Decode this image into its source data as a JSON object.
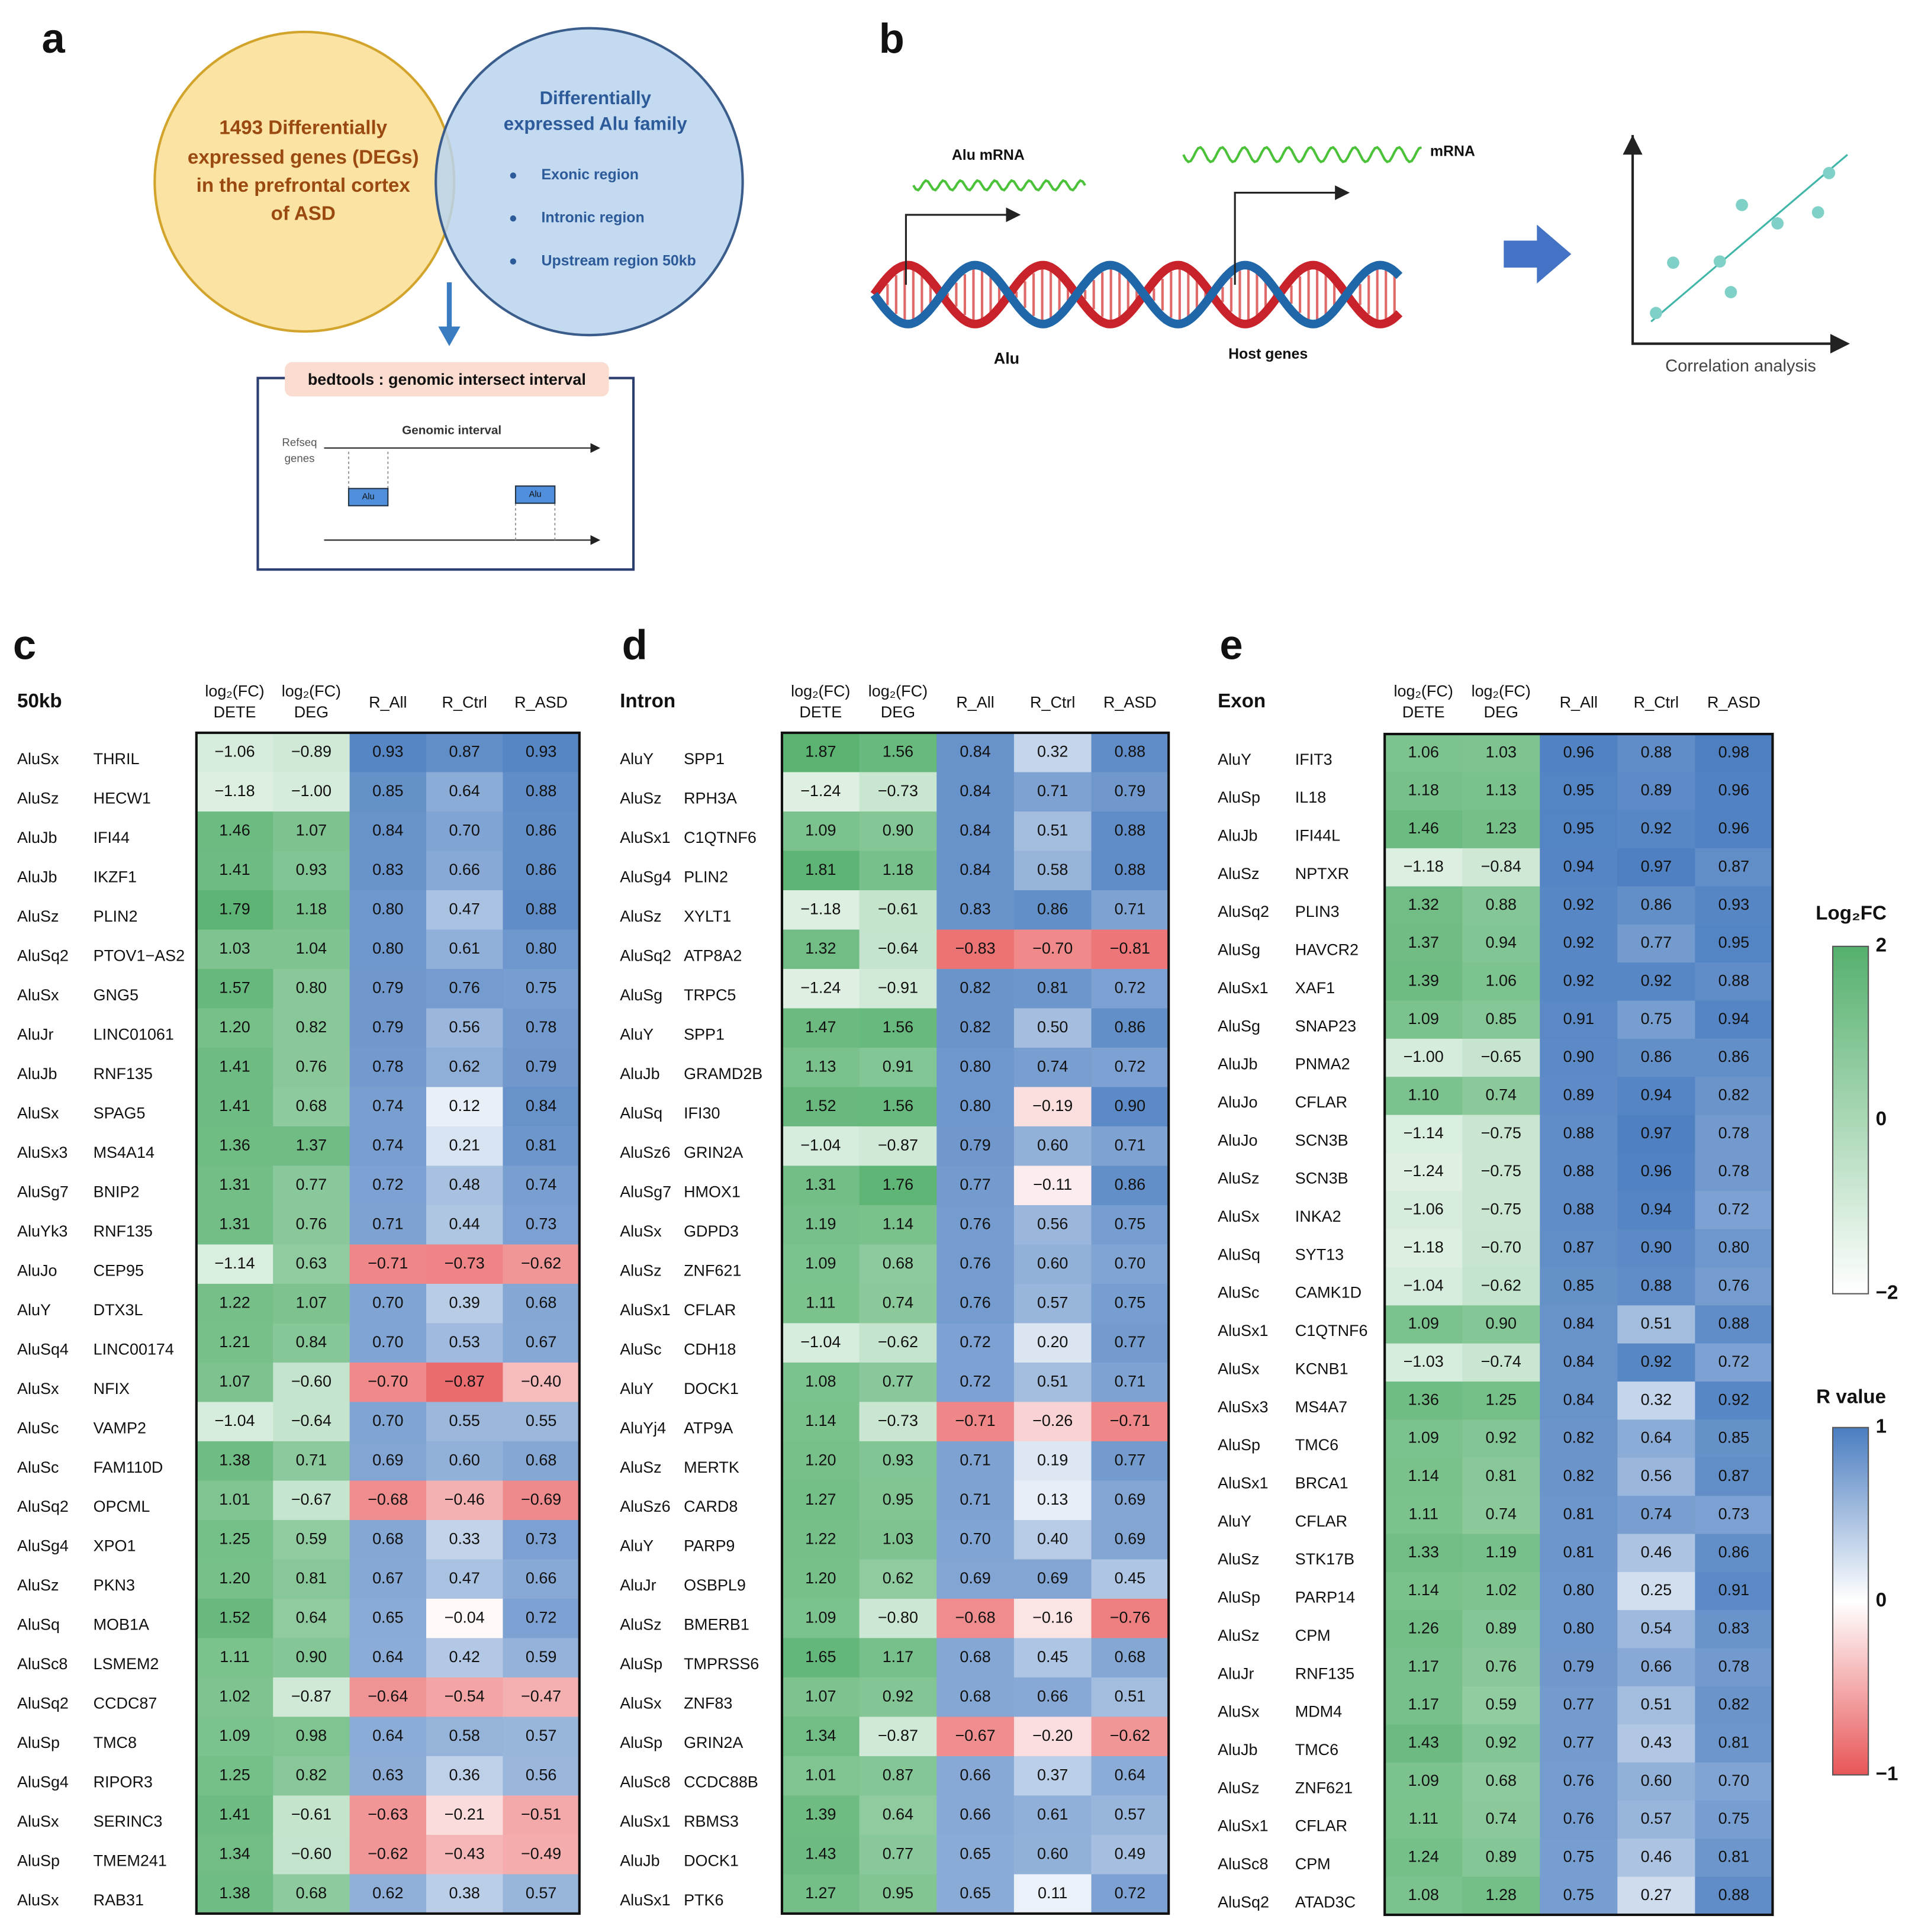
{
  "panel_a": {
    "label": "a",
    "deg_circle": [
      "1493 Differentially",
      "expressed genes (DEGs)",
      "in the prefrontal cortex",
      "of ASD"
    ],
    "alu_circle": {
      "title": [
        "Differentially",
        "expressed Alu family"
      ],
      "items": [
        "Exonic region",
        "Intronic region",
        "Upstream region 50kb"
      ]
    },
    "tool": "bedtools : genomic intersect interval",
    "diagram": {
      "refseq": [
        "Refseq",
        "genes"
      ],
      "interval": "Genomic interval",
      "alu": [
        "Alu",
        "Alu"
      ]
    }
  },
  "panel_b": {
    "label": "b",
    "alu_mrna": "Alu mRNA",
    "mrna": "mRNA",
    "alu": "Alu",
    "host": "Host genes",
    "correlation": "Correlation analysis"
  },
  "heatmaps": [
    {
      "label": "c",
      "region": "50kb",
      "columns": [
        {
          "top": "log₂(FC)",
          "bottom": "DETE"
        },
        {
          "top": "log₂(FC)",
          "bottom": "DEG"
        },
        {
          "top": "R_All"
        },
        {
          "top": "R_Ctrl"
        },
        {
          "top": "R_ASD"
        }
      ],
      "rows": [
        [
          "AluSx",
          "THRIL",
          "−1.06",
          "−0.89",
          "0.93",
          "0.87",
          "0.93"
        ],
        [
          "AluSz",
          "HECW1",
          "−1.18",
          "−1.00",
          "0.85",
          "0.64",
          "0.88"
        ],
        [
          "AluJb",
          "IFI44",
          "1.46",
          "1.07",
          "0.84",
          "0.70",
          "0.86"
        ],
        [
          "AluJb",
          "IKZF1",
          "1.41",
          "0.93",
          "0.83",
          "0.66",
          "0.86"
        ],
        [
          "AluSz",
          "PLIN2",
          "1.79",
          "1.18",
          "0.80",
          "0.47",
          "0.88"
        ],
        [
          "AluSq2",
          "PTOV1−AS2",
          "1.03",
          "1.04",
          "0.80",
          "0.61",
          "0.80"
        ],
        [
          "AluSx",
          "GNG5",
          "1.57",
          "0.80",
          "0.79",
          "0.76",
          "0.75"
        ],
        [
          "AluJr",
          "LINC01061",
          "1.20",
          "0.82",
          "0.79",
          "0.56",
          "0.78"
        ],
        [
          "AluJb",
          "RNF135",
          "1.41",
          "0.76",
          "0.78",
          "0.62",
          "0.79"
        ],
        [
          "AluSx",
          "SPAG5",
          "1.41",
          "0.68",
          "0.74",
          "0.12",
          "0.84"
        ],
        [
          "AluSx3",
          "MS4A14",
          "1.36",
          "1.37",
          "0.74",
          "0.21",
          "0.81"
        ],
        [
          "AluSg7",
          "BNIP2",
          "1.31",
          "0.77",
          "0.72",
          "0.48",
          "0.74"
        ],
        [
          "AluYk3",
          "RNF135",
          "1.31",
          "0.76",
          "0.71",
          "0.44",
          "0.73"
        ],
        [
          "AluJo",
          "CEP95",
          "−1.14",
          "0.63",
          "−0.71",
          "−0.73",
          "−0.62"
        ],
        [
          "AluY",
          "DTX3L",
          "1.22",
          "1.07",
          "0.70",
          "0.39",
          "0.68"
        ],
        [
          "AluSq4",
          "LINC00174",
          "1.21",
          "0.84",
          "0.70",
          "0.53",
          "0.67"
        ],
        [
          "AluSx",
          "NFIX",
          "1.07",
          "−0.60",
          "−0.70",
          "−0.87",
          "−0.40"
        ],
        [
          "AluSc",
          "VAMP2",
          "−1.04",
          "−0.64",
          "0.70",
          "0.55",
          "0.55"
        ],
        [
          "AluSc",
          "FAM110D",
          "1.38",
          "0.71",
          "0.69",
          "0.60",
          "0.68"
        ],
        [
          "AluSq2",
          "OPCML",
          "1.01",
          "−0.67",
          "−0.68",
          "−0.46",
          "−0.69"
        ],
        [
          "AluSg4",
          "XPO1",
          "1.25",
          "0.59",
          "0.68",
          "0.33",
          "0.73"
        ],
        [
          "AluSz",
          "PKN3",
          "1.20",
          "0.81",
          "0.67",
          "0.47",
          "0.66"
        ],
        [
          "AluSq",
          "MOB1A",
          "1.52",
          "0.64",
          "0.65",
          "−0.04",
          "0.72"
        ],
        [
          "AluSc8",
          "LSMEM2",
          "1.11",
          "0.90",
          "0.64",
          "0.42",
          "0.59"
        ],
        [
          "AluSq2",
          "CCDC87",
          "1.02",
          "−0.87",
          "−0.64",
          "−0.54",
          "−0.47"
        ],
        [
          "AluSp",
          "TMC8",
          "1.09",
          "0.98",
          "0.64",
          "0.58",
          "0.57"
        ],
        [
          "AluSg4",
          "RIPOR3",
          "1.25",
          "0.82",
          "0.63",
          "0.36",
          "0.56"
        ],
        [
          "AluSx",
          "SERINC3",
          "1.41",
          "−0.61",
          "−0.63",
          "−0.21",
          "−0.51"
        ],
        [
          "AluSp",
          "TMEM241",
          "1.34",
          "−0.60",
          "−0.62",
          "−0.43",
          "−0.49"
        ],
        [
          "AluSx",
          "RAB31",
          "1.38",
          "0.68",
          "0.62",
          "0.38",
          "0.57"
        ]
      ]
    },
    {
      "label": "d",
      "region": "Intron",
      "columns": [
        {
          "top": "log₂(FC)",
          "bottom": "DETE"
        },
        {
          "top": "log₂(FC)",
          "bottom": "DEG"
        },
        {
          "top": "R_All"
        },
        {
          "top": "R_Ctrl"
        },
        {
          "top": "R_ASD"
        }
      ],
      "rows": [
        [
          "AluY",
          "SPP1",
          "1.87",
          "1.56",
          "0.84",
          "0.32",
          "0.88"
        ],
        [
          "AluSz",
          "RPH3A",
          "−1.24",
          "−0.73",
          "0.84",
          "0.71",
          "0.79"
        ],
        [
          "AluSx1",
          "C1QTNF6",
          "1.09",
          "0.90",
          "0.84",
          "0.51",
          "0.88"
        ],
        [
          "AluSg4",
          "PLIN2",
          "1.81",
          "1.18",
          "0.84",
          "0.58",
          "0.88"
        ],
        [
          "AluSz",
          "XYLT1",
          "−1.18",
          "−0.61",
          "0.83",
          "0.86",
          "0.71"
        ],
        [
          "AluSq2",
          "ATP8A2",
          "1.32",
          "−0.64",
          "−0.83",
          "−0.70",
          "−0.81"
        ],
        [
          "AluSg",
          "TRPC5",
          "−1.24",
          "−0.91",
          "0.82",
          "0.81",
          "0.72"
        ],
        [
          "AluY",
          "SPP1",
          "1.47",
          "1.56",
          "0.82",
          "0.50",
          "0.86"
        ],
        [
          "AluJb",
          "GRAMD2B",
          "1.13",
          "0.91",
          "0.80",
          "0.74",
          "0.72"
        ],
        [
          "AluSq",
          "IFI30",
          "1.52",
          "1.56",
          "0.80",
          "−0.19",
          "0.90"
        ],
        [
          "AluSz6",
          "GRIN2A",
          "−1.04",
          "−0.87",
          "0.79",
          "0.60",
          "0.71"
        ],
        [
          "AluSg7",
          "HMOX1",
          "1.31",
          "1.76",
          "0.77",
          "−0.11",
          "0.86"
        ],
        [
          "AluSx",
          "GDPD3",
          "1.19",
          "1.14",
          "0.76",
          "0.56",
          "0.75"
        ],
        [
          "AluSz",
          "ZNF621",
          "1.09",
          "0.68",
          "0.76",
          "0.60",
          "0.70"
        ],
        [
          "AluSx1",
          "CFLAR",
          "1.11",
          "0.74",
          "0.76",
          "0.57",
          "0.75"
        ],
        [
          "AluSc",
          "CDH18",
          "−1.04",
          "−0.62",
          "0.72",
          "0.20",
          "0.77"
        ],
        [
          "AluY",
          "DOCK1",
          "1.08",
          "0.77",
          "0.72",
          "0.51",
          "0.71"
        ],
        [
          "AluYj4",
          "ATP9A",
          "1.14",
          "−0.73",
          "−0.71",
          "−0.26",
          "−0.71"
        ],
        [
          "AluSz",
          "MERTK",
          "1.20",
          "0.93",
          "0.71",
          "0.19",
          "0.77"
        ],
        [
          "AluSz6",
          "CARD8",
          "1.27",
          "0.95",
          "0.71",
          "0.13",
          "0.69"
        ],
        [
          "AluY",
          "PARP9",
          "1.22",
          "1.03",
          "0.70",
          "0.40",
          "0.69"
        ],
        [
          "AluJr",
          "OSBPL9",
          "1.20",
          "0.62",
          "0.69",
          "0.69",
          "0.45"
        ],
        [
          "AluSz",
          "BMERB1",
          "1.09",
          "−0.80",
          "−0.68",
          "−0.16",
          "−0.76"
        ],
        [
          "AluSp",
          "TMPRSS6",
          "1.65",
          "1.17",
          "0.68",
          "0.45",
          "0.68"
        ],
        [
          "AluSx",
          "ZNF83",
          "1.07",
          "0.92",
          "0.68",
          "0.66",
          "0.51"
        ],
        [
          "AluSp",
          "GRIN2A",
          "1.34",
          "−0.87",
          "−0.67",
          "−0.20",
          "−0.62"
        ],
        [
          "AluSc8",
          "CCDC88B",
          "1.01",
          "0.87",
          "0.66",
          "0.37",
          "0.64"
        ],
        [
          "AluSx1",
          "RBMS3",
          "1.39",
          "0.64",
          "0.66",
          "0.61",
          "0.57"
        ],
        [
          "AluJb",
          "DOCK1",
          "1.43",
          "0.77",
          "0.65",
          "0.60",
          "0.49"
        ],
        [
          "AluSx1",
          "PTK6",
          "1.27",
          "0.95",
          "0.65",
          "0.11",
          "0.72"
        ]
      ]
    },
    {
      "label": "e",
      "region": "Exon",
      "columns": [
        {
          "top": "log₂(FC)",
          "bottom": "DETE"
        },
        {
          "top": "log₂(FC)",
          "bottom": "DEG"
        },
        {
          "top": "R_All"
        },
        {
          "top": "R_Ctrl"
        },
        {
          "top": "R_ASD"
        }
      ],
      "rows": [
        [
          "AluY",
          "IFIT3",
          "1.06",
          "1.03",
          "0.96",
          "0.88",
          "0.98"
        ],
        [
          "AluSp",
          "IL18",
          "1.18",
          "1.13",
          "0.95",
          "0.89",
          "0.96"
        ],
        [
          "AluJb",
          "IFI44L",
          "1.46",
          "1.23",
          "0.95",
          "0.92",
          "0.96"
        ],
        [
          "AluSz",
          "NPTXR",
          "−1.18",
          "−0.84",
          "0.94",
          "0.97",
          "0.87"
        ],
        [
          "AluSq2",
          "PLIN3",
          "1.32",
          "0.88",
          "0.92",
          "0.86",
          "0.93"
        ],
        [
          "AluSg",
          "HAVCR2",
          "1.37",
          "0.94",
          "0.92",
          "0.77",
          "0.95"
        ],
        [
          "AluSx1",
          "XAF1",
          "1.39",
          "1.06",
          "0.92",
          "0.92",
          "0.88"
        ],
        [
          "AluSg",
          "SNAP23",
          "1.09",
          "0.85",
          "0.91",
          "0.75",
          "0.94"
        ],
        [
          "AluJb",
          "PNMA2",
          "−1.00",
          "−0.65",
          "0.90",
          "0.86",
          "0.86"
        ],
        [
          "AluJo",
          "CFLAR",
          "1.10",
          "0.74",
          "0.89",
          "0.94",
          "0.82"
        ],
        [
          "AluJo",
          "SCN3B",
          "−1.14",
          "−0.75",
          "0.88",
          "0.97",
          "0.78"
        ],
        [
          "AluSz",
          "SCN3B",
          "−1.24",
          "−0.75",
          "0.88",
          "0.96",
          "0.78"
        ],
        [
          "AluSx",
          "INKA2",
          "−1.06",
          "−0.75",
          "0.88",
          "0.94",
          "0.72"
        ],
        [
          "AluSq",
          "SYT13",
          "−1.18",
          "−0.70",
          "0.87",
          "0.90",
          "0.80"
        ],
        [
          "AluSc",
          "CAMK1D",
          "−1.04",
          "−0.62",
          "0.85",
          "0.88",
          "0.76"
        ],
        [
          "AluSx1",
          "C1QTNF6",
          "1.09",
          "0.90",
          "0.84",
          "0.51",
          "0.88"
        ],
        [
          "AluSx",
          "KCNB1",
          "−1.03",
          "−0.74",
          "0.84",
          "0.92",
          "0.72"
        ],
        [
          "AluSx3",
          "MS4A7",
          "1.36",
          "1.25",
          "0.84",
          "0.32",
          "0.92"
        ],
        [
          "AluSp",
          "TMC6",
          "1.09",
          "0.92",
          "0.82",
          "0.64",
          "0.85"
        ],
        [
          "AluSx1",
          "BRCA1",
          "1.14",
          "0.81",
          "0.82",
          "0.56",
          "0.87"
        ],
        [
          "AluY",
          "CFLAR",
          "1.11",
          "0.74",
          "0.81",
          "0.74",
          "0.73"
        ],
        [
          "AluSz",
          "STK17B",
          "1.33",
          "1.19",
          "0.81",
          "0.46",
          "0.86"
        ],
        [
          "AluSp",
          "PARP14",
          "1.14",
          "1.02",
          "0.80",
          "0.25",
          "0.91"
        ],
        [
          "AluSz",
          "CPM",
          "1.26",
          "0.89",
          "0.80",
          "0.54",
          "0.83"
        ],
        [
          "AluJr",
          "RNF135",
          "1.17",
          "0.76",
          "0.79",
          "0.66",
          "0.78"
        ],
        [
          "AluSx",
          "MDM4",
          "1.17",
          "0.59",
          "0.77",
          "0.51",
          "0.82"
        ],
        [
          "AluJb",
          "TMC6",
          "1.43",
          "0.92",
          "0.77",
          "0.43",
          "0.81"
        ],
        [
          "AluSz",
          "ZNF621",
          "1.09",
          "0.68",
          "0.76",
          "0.60",
          "0.70"
        ],
        [
          "AluSx1",
          "CFLAR",
          "1.11",
          "0.74",
          "0.76",
          "0.57",
          "0.75"
        ],
        [
          "AluSc8",
          "CPM",
          "1.24",
          "0.89",
          "0.75",
          "0.46",
          "0.81"
        ],
        [
          "AluSq2",
          "ATAD3C",
          "1.08",
          "1.28",
          "0.75",
          "0.27",
          "0.88"
        ]
      ]
    }
  ],
  "legends": [
    {
      "title": "Log₂FC",
      "ticks": [
        "2",
        "0",
        "−2"
      ]
    },
    {
      "title": "R value",
      "ticks": [
        "1",
        "0",
        "−1"
      ]
    }
  ]
}
